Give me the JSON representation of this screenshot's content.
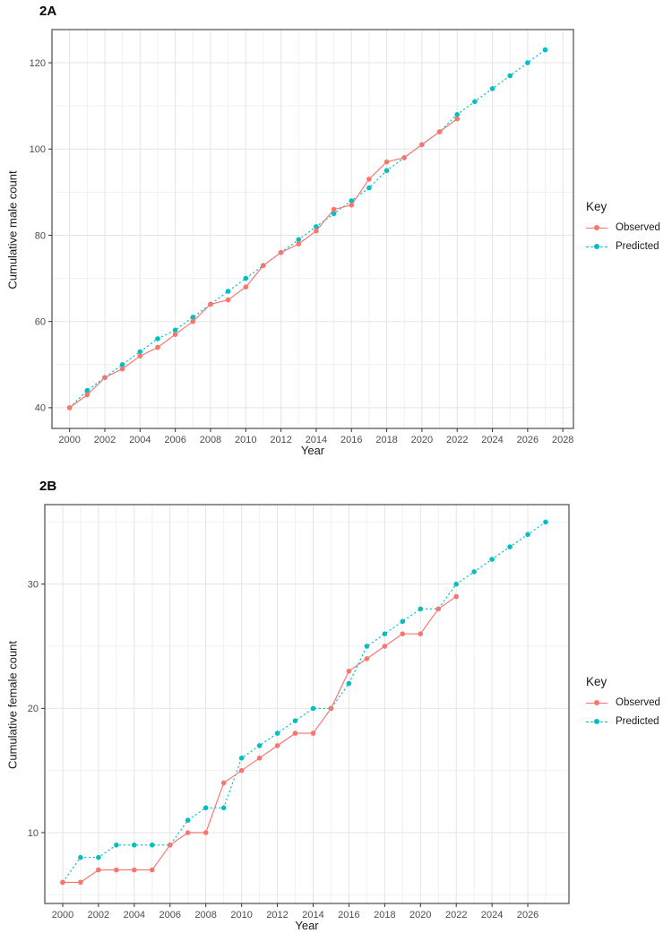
{
  "figure": {
    "background": "#ffffff",
    "panel_border_color": "#595959",
    "grid_major_color": "#e4e4e4",
    "grid_minor_color": "#f0f0f0",
    "tick_color": "#333333",
    "tick_label_color": "#4d4d4d",
    "axis_title_color": "#1a1a1a"
  },
  "chart_data": [
    {
      "type": "line",
      "title": "2A",
      "xlabel": "Year",
      "ylabel": "Cumulative male count",
      "legend_title": "Key",
      "legend_position": "right",
      "grid": true,
      "x_ticks": [
        2000,
        2002,
        2004,
        2006,
        2008,
        2010,
        2012,
        2014,
        2016,
        2018,
        2020,
        2022,
        2024,
        2026,
        2028
      ],
      "y_ticks": [
        40,
        60,
        80,
        100,
        120
      ],
      "xlim": [
        1999.0,
        2028.6
      ],
      "ylim": [
        35.2,
        127.7
      ],
      "series": [
        {
          "name": "Observed",
          "color": "#F8766D",
          "line": "solid",
          "x": [
            2000,
            2001,
            2002,
            2003,
            2004,
            2005,
            2006,
            2007,
            2008,
            2009,
            2010,
            2011,
            2012,
            2013,
            2014,
            2015,
            2016,
            2017,
            2018,
            2019,
            2020,
            2021,
            2022
          ],
          "values": [
            40,
            43,
            47,
            49,
            52,
            54,
            57,
            60,
            64,
            65,
            68,
            73,
            76,
            78,
            81,
            86,
            87,
            93,
            97,
            98,
            101,
            104,
            107
          ]
        },
        {
          "name": "Predicted",
          "color": "#00BFC4",
          "line": "dashed",
          "x": [
            2000,
            2001,
            2002,
            2003,
            2004,
            2005,
            2006,
            2007,
            2008,
            2009,
            2010,
            2011,
            2012,
            2013,
            2014,
            2015,
            2016,
            2017,
            2018,
            2019,
            2020,
            2021,
            2022,
            2023,
            2024,
            2025,
            2026,
            2027
          ],
          "values": [
            40,
            44,
            47,
            50,
            53,
            56,
            58,
            61,
            64,
            67,
            70,
            73,
            76,
            79,
            82,
            85,
            88,
            91,
            95,
            98,
            101,
            104,
            108,
            111,
            114,
            117,
            120,
            123
          ]
        }
      ]
    },
    {
      "type": "line",
      "title": "2B",
      "xlabel": "Year",
      "ylabel": "Cumulative female count",
      "legend_title": "Key",
      "legend_position": "right",
      "grid": true,
      "x_ticks": [
        2000,
        2002,
        2004,
        2006,
        2008,
        2010,
        2012,
        2014,
        2016,
        2018,
        2020,
        2022,
        2024,
        2026
      ],
      "y_ticks": [
        10,
        20,
        30
      ],
      "xlim": [
        1999.0,
        2028.3
      ],
      "ylim": [
        4.3,
        36.4
      ],
      "series": [
        {
          "name": "Observed",
          "color": "#F8766D",
          "line": "solid",
          "x": [
            2000,
            2001,
            2002,
            2003,
            2004,
            2005,
            2006,
            2007,
            2008,
            2009,
            2010,
            2011,
            2012,
            2013,
            2014,
            2015,
            2016,
            2017,
            2018,
            2019,
            2020,
            2021,
            2022
          ],
          "values": [
            6,
            6,
            7,
            7,
            7,
            7,
            9,
            10,
            10,
            14,
            15,
            16,
            17,
            18,
            18,
            20,
            23,
            24,
            25,
            26,
            26,
            28,
            29
          ]
        },
        {
          "name": "Predicted",
          "color": "#00BFC4",
          "line": "dashed",
          "x": [
            2000,
            2001,
            2002,
            2003,
            2004,
            2005,
            2006,
            2007,
            2008,
            2009,
            2010,
            2011,
            2012,
            2013,
            2014,
            2015,
            2016,
            2017,
            2018,
            2019,
            2020,
            2021,
            2022,
            2023,
            2024,
            2025,
            2026,
            2027
          ],
          "values": [
            6,
            8,
            8,
            9,
            9,
            9,
            9,
            11,
            12,
            12,
            16,
            17,
            18,
            19,
            20,
            20,
            22,
            25,
            26,
            27,
            28,
            28,
            30,
            31,
            32,
            33,
            34,
            35
          ]
        }
      ]
    }
  ]
}
